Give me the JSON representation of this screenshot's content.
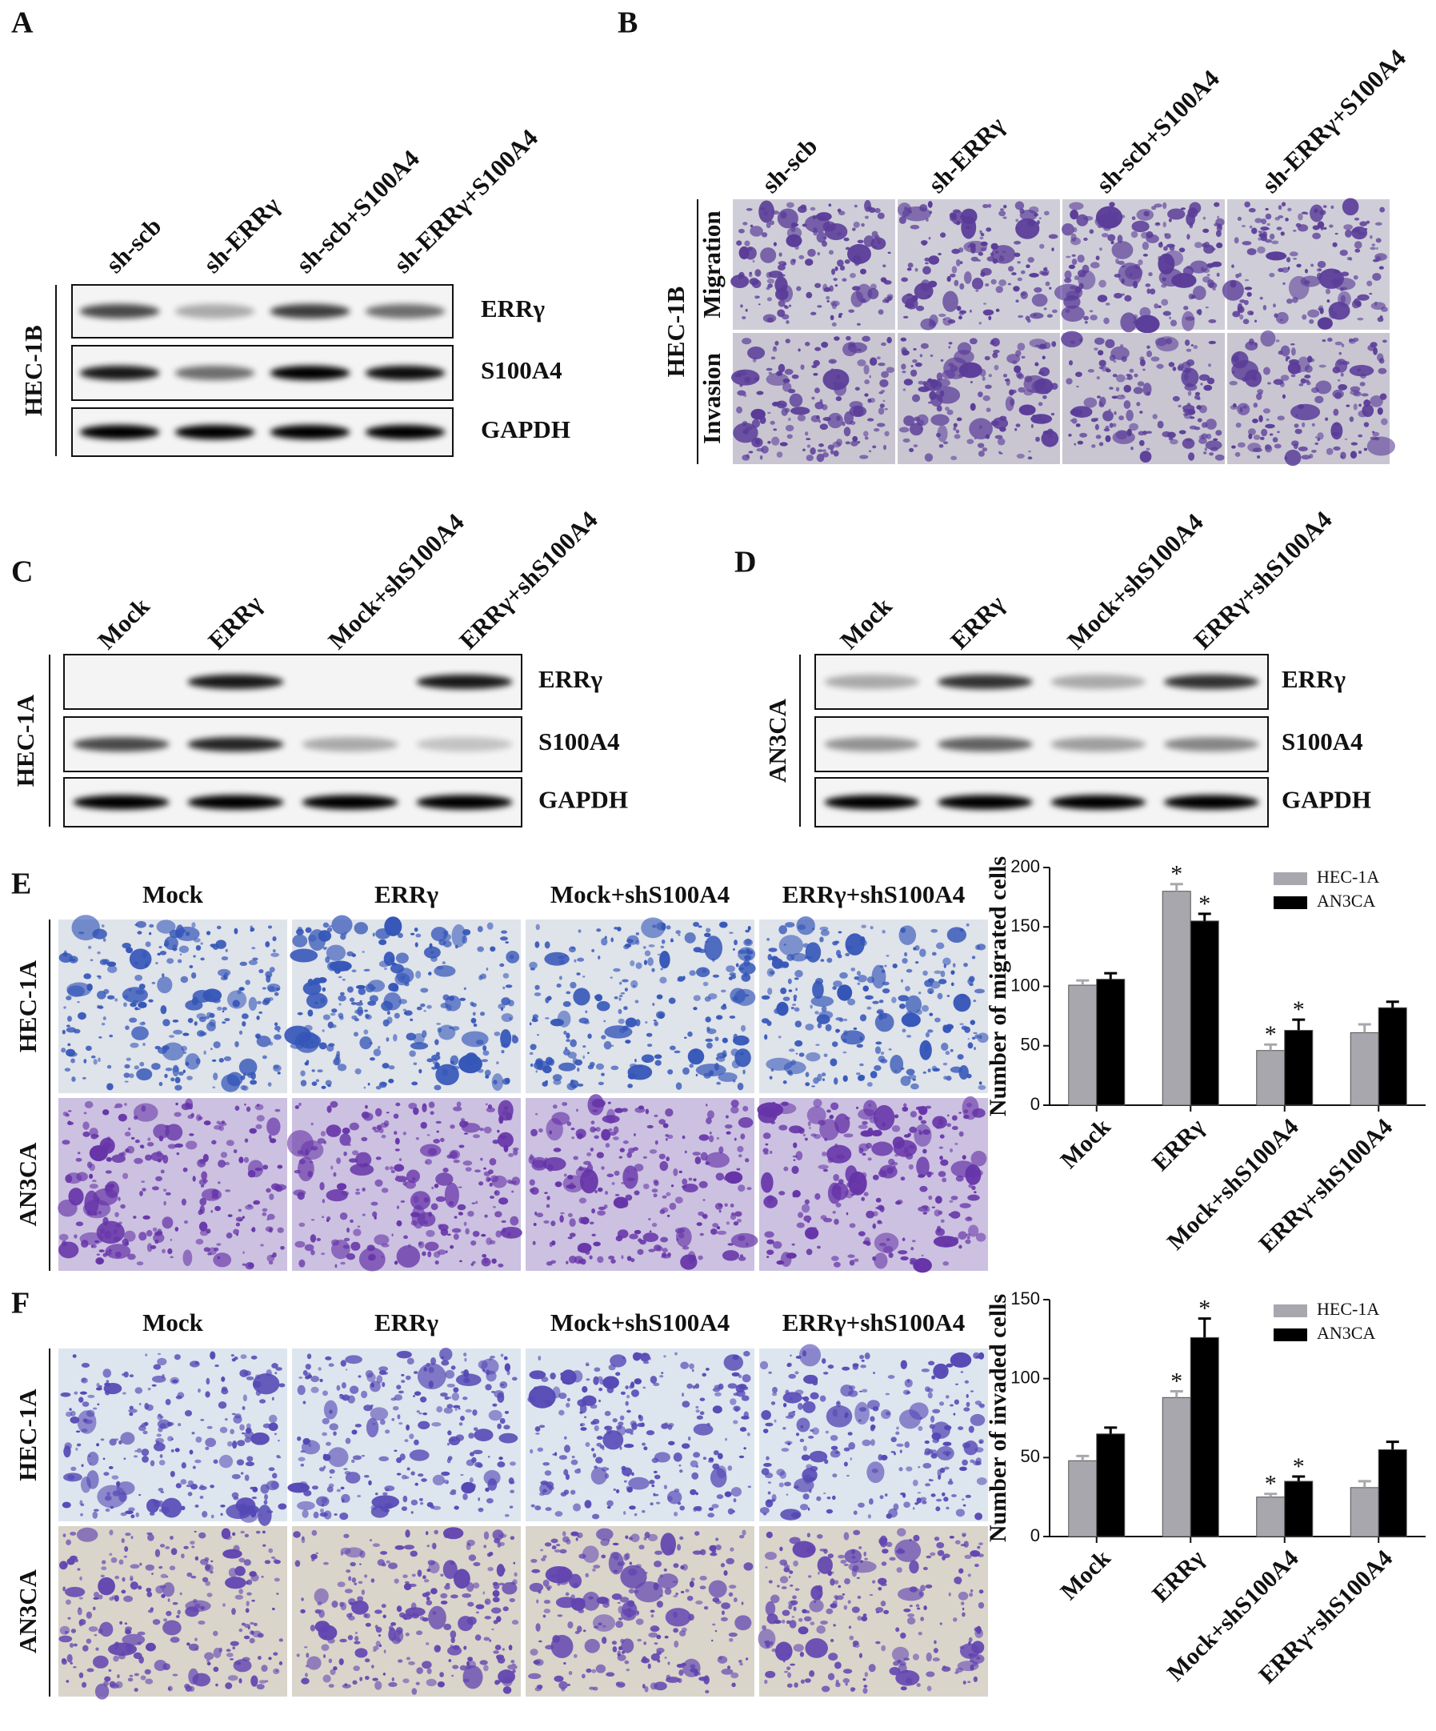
{
  "panels": {
    "A": {
      "label": "A",
      "lanes": [
        "sh-scb",
        "sh-ERRγ",
        "sh-scb+S100A4",
        "sh-ERRγ+S100A4"
      ],
      "cell_line": "HEC-1B",
      "rows": [
        "ERRγ",
        "S100A4",
        "GAPDH"
      ]
    },
    "B": {
      "label": "B",
      "lanes": [
        "sh-scb",
        "sh-ERRγ",
        "sh-scb+S100A4",
        "sh-ERRγ+S100A4"
      ],
      "cell_line": "HEC-1B",
      "rows": [
        "Migration",
        "Invasion"
      ]
    },
    "C": {
      "label": "C",
      "lanes": [
        "Mock",
        "ERRγ",
        "Mock+shS100A4",
        "ERRγ+shS100A4"
      ],
      "cell_line": "HEC-1A",
      "rows": [
        "ERRγ",
        "S100A4",
        "GAPDH"
      ]
    },
    "D": {
      "label": "D",
      "lanes": [
        "Mock",
        "ERRγ",
        "Mock+shS100A4",
        "ERRγ+shS100A4"
      ],
      "cell_line": "AN3CA",
      "rows": [
        "ERRγ",
        "S100A4",
        "GAPDH"
      ]
    },
    "E": {
      "label": "E",
      "columns": [
        "Mock",
        "ERRγ",
        "Mock+shS100A4",
        "ERRγ+shS100A4"
      ],
      "rows": [
        "HEC-1A",
        "AN3CA"
      ]
    },
    "F": {
      "label": "F",
      "columns": [
        "Mock",
        "ERRγ",
        "Mock+shS100A4",
        "ERRγ+shS100A4"
      ],
      "rows": [
        "HEC-1A",
        "AN3CA"
      ]
    }
  },
  "chart_data": [
    {
      "type": "bar",
      "y_label": "Number of migrated cells",
      "categories": [
        "Mock",
        "ERRγ",
        "Mock+shS100A4",
        "ERRγ+shS100A4"
      ],
      "series": [
        {
          "name": "HEC-1A",
          "color": "#a7a7ad",
          "values": [
            101,
            180,
            46,
            61
          ],
          "errors": [
            4,
            6,
            5,
            7
          ],
          "significance": [
            null,
            "*",
            "*",
            null
          ]
        },
        {
          "name": "AN3CA",
          "color": "#000000",
          "values": [
            106,
            155,
            63,
            82
          ],
          "errors": [
            5,
            6,
            9,
            5
          ],
          "significance": [
            null,
            "*",
            "*",
            null
          ]
        }
      ],
      "ylim": [
        0,
        200
      ],
      "yticks": [
        0,
        50,
        100,
        150,
        200
      ],
      "legend": "upper right"
    },
    {
      "type": "bar",
      "y_label": "Number of invaded cells",
      "categories": [
        "Mock",
        "ERRγ",
        "Mock+shS100A4",
        "ERRγ+shS100A4"
      ],
      "series": [
        {
          "name": "HEC-1A",
          "color": "#a7a7ad",
          "values": [
            48,
            88,
            25,
            31
          ],
          "errors": [
            3,
            4,
            2,
            4
          ],
          "significance": [
            null,
            "*",
            "*",
            null
          ]
        },
        {
          "name": "AN3CA",
          "color": "#000000",
          "values": [
            65,
            126,
            35,
            55
          ],
          "errors": [
            4,
            12,
            3,
            5
          ],
          "significance": [
            null,
            "*",
            "*",
            null
          ]
        }
      ],
      "ylim": [
        0,
        150
      ],
      "yticks": [
        0,
        50,
        100,
        150
      ],
      "legend": "upper right"
    }
  ]
}
